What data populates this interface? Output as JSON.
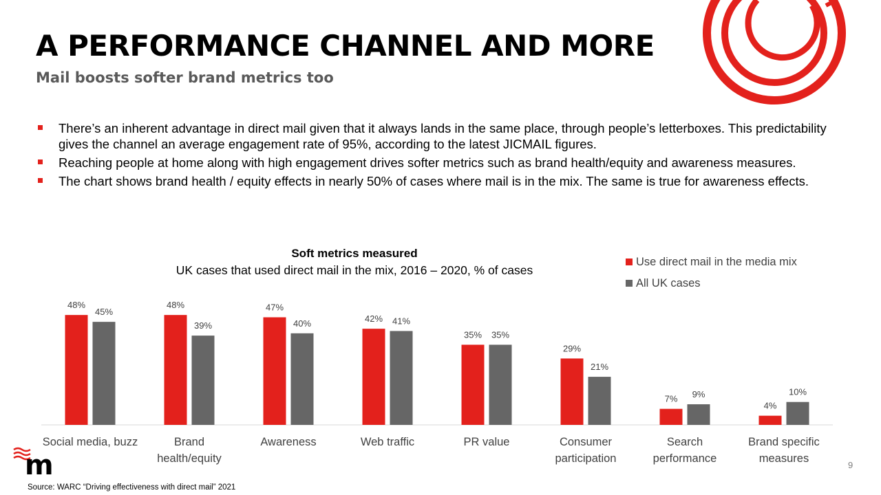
{
  "header": {
    "title": "A PERFORMANCE CHANNEL AND MORE",
    "subtitle": "Mail boosts softer brand metrics too"
  },
  "bullets": [
    "There’s an inherent advantage in direct mail given that it always lands in the same place, through people’s letterboxes. This predictability gives the channel an average engagement rate of 95%, according to the latest JICMAIL figures.",
    "Reaching people at home along with high engagement drives softer metrics such as brand health/equity and awareness measures.",
    "The chart shows brand health / equity effects in nearly 50% of cases where mail is in the mix. The same is true for awareness effects."
  ],
  "chart_data": {
    "type": "bar",
    "title": "Soft metrics measured",
    "subtitle": "UK cases that used direct mail in the mix, 2016 – 2020, % of cases",
    "categories": [
      [
        "Social media, buzz"
      ],
      [
        "Brand",
        "health/equity"
      ],
      [
        "Awareness"
      ],
      [
        "Web traffic"
      ],
      [
        "PR value"
      ],
      [
        "Consumer",
        "participation"
      ],
      [
        "Search",
        "performance"
      ],
      [
        "Brand specific",
        "measures"
      ]
    ],
    "series": [
      {
        "name": "Use direct mail in the media mix",
        "color": "#e3211c",
        "values": [
          48,
          48,
          47,
          42,
          35,
          29,
          7,
          4
        ]
      },
      {
        "name": "All UK cases",
        "color": "#666666",
        "values": [
          45,
          39,
          40,
          41,
          35,
          21,
          9,
          10
        ]
      }
    ],
    "value_suffix": "%",
    "ylim": [
      0,
      50
    ],
    "grid": false,
    "legend_position": "top-right"
  },
  "footer": {
    "page_number": "9",
    "source": "Source: WARC “Driving effectiveness with direct mail” 2021",
    "logo_icon": "mail-m-logo-icon"
  },
  "colors": {
    "accent": "#e3211c",
    "subtitle": "#595959",
    "series_gray": "#666666"
  }
}
